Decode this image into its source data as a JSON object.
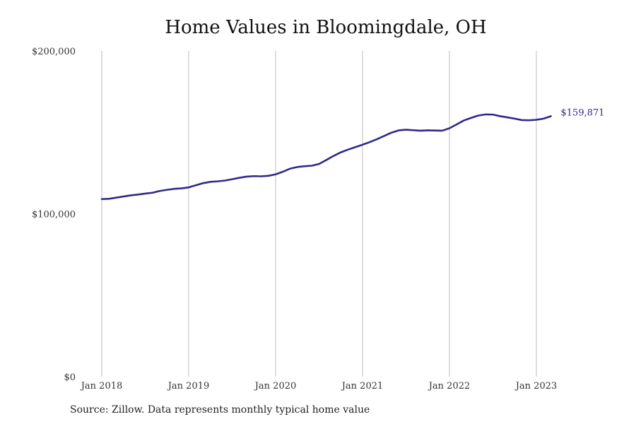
{
  "chart_data": {
    "type": "line",
    "title": "Home Values in Bloomingdale, OH",
    "xlabel": "",
    "ylabel": "",
    "x_ticks": [
      "Jan 2018",
      "Jan 2019",
      "Jan 2020",
      "Jan 2021",
      "Jan 2022",
      "Jan 2023"
    ],
    "y_ticks": [
      "$0",
      "$100,000",
      "$200,000"
    ],
    "ylim": [
      0,
      200000
    ],
    "xlim": [
      "2018-01",
      "2023-03"
    ],
    "grid": "vertical",
    "line_color": "#2e2a8c",
    "end_label": "$159,871",
    "series": [
      {
        "x": [
          "2018-01",
          "2018-02",
          "2018-03",
          "2018-04",
          "2018-05",
          "2018-06",
          "2018-07",
          "2018-08",
          "2018-09",
          "2018-10",
          "2018-11",
          "2018-12",
          "2019-01",
          "2019-02",
          "2019-03",
          "2019-04",
          "2019-05",
          "2019-06",
          "2019-07",
          "2019-08",
          "2019-09",
          "2019-10",
          "2019-11",
          "2019-12",
          "2020-01",
          "2020-02",
          "2020-03",
          "2020-04",
          "2020-05",
          "2020-06",
          "2020-07",
          "2020-08",
          "2020-09",
          "2020-10",
          "2020-11",
          "2020-12",
          "2021-01",
          "2021-02",
          "2021-03",
          "2021-04",
          "2021-05",
          "2021-06",
          "2021-07",
          "2021-08",
          "2021-09",
          "2021-10",
          "2021-11",
          "2021-12",
          "2022-01",
          "2022-02",
          "2022-03",
          "2022-04",
          "2022-05",
          "2022-06",
          "2022-07",
          "2022-08",
          "2022-09",
          "2022-10",
          "2022-11",
          "2022-12",
          "2023-01",
          "2023-02",
          "2023-03"
        ],
        "values": [
          109000,
          109200,
          109900,
          110600,
          111300,
          111800,
          112400,
          112900,
          114000,
          114700,
          115300,
          115600,
          116200,
          117500,
          118800,
          119600,
          119900,
          120400,
          121200,
          122100,
          122800,
          123100,
          123000,
          123300,
          124200,
          125800,
          127700,
          128700,
          129200,
          129500,
          130600,
          133000,
          135500,
          137700,
          139400,
          140900,
          142400,
          144000,
          145800,
          147800,
          149800,
          151200,
          151600,
          151300,
          151000,
          151200,
          151100,
          151000,
          152500,
          154900,
          157300,
          158900,
          160300,
          161000,
          160900,
          159900,
          159200,
          158400,
          157500,
          157400,
          157700,
          158400,
          159871
        ]
      }
    ]
  },
  "source_note": "Source: Zillow. Data represents monthly typical home value"
}
